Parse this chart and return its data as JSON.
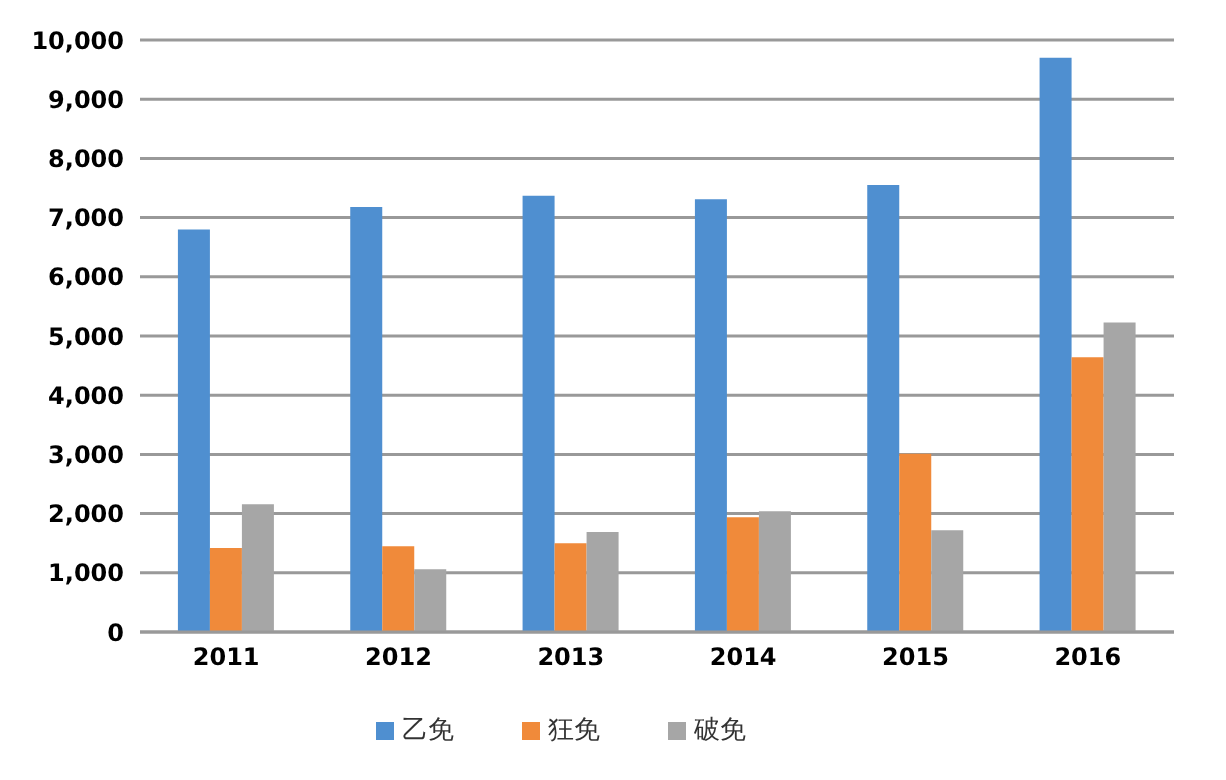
{
  "chart_data": {
    "type": "bar",
    "categories": [
      "2011",
      "2012",
      "2013",
      "2014",
      "2015",
      "2016"
    ],
    "series": [
      {
        "name": "乙免",
        "color": "#4f8fd0",
        "values": [
          6800,
          7180,
          7370,
          7310,
          7550,
          9700
        ]
      },
      {
        "name": "狂免",
        "color": "#f08a3a",
        "values": [
          1420,
          1450,
          1500,
          1940,
          3010,
          4640
        ]
      },
      {
        "name": "破免",
        "color": "#a6a6a6",
        "values": [
          2160,
          1060,
          1690,
          2040,
          1720,
          5230
        ]
      }
    ],
    "ylim": [
      0,
      10000
    ],
    "yticks": [
      0,
      {
        "value": 1000,
        "label": "1,000"
      },
      {
        "value": 2000,
        "label": "2,000"
      },
      {
        "value": 3000,
        "label": "3,000"
      },
      {
        "value": 4000,
        "label": "4,000"
      },
      {
        "value": 5000,
        "label": "5,000"
      },
      {
        "value": 6000,
        "label": "6,000"
      },
      {
        "value": 7000,
        "label": "7,000"
      },
      {
        "value": 8000,
        "label": "8,000"
      },
      {
        "value": 9000,
        "label": "9,000"
      },
      {
        "value": 10000,
        "label": "10,000"
      }
    ],
    "grid": "y",
    "legend": "bottom"
  }
}
